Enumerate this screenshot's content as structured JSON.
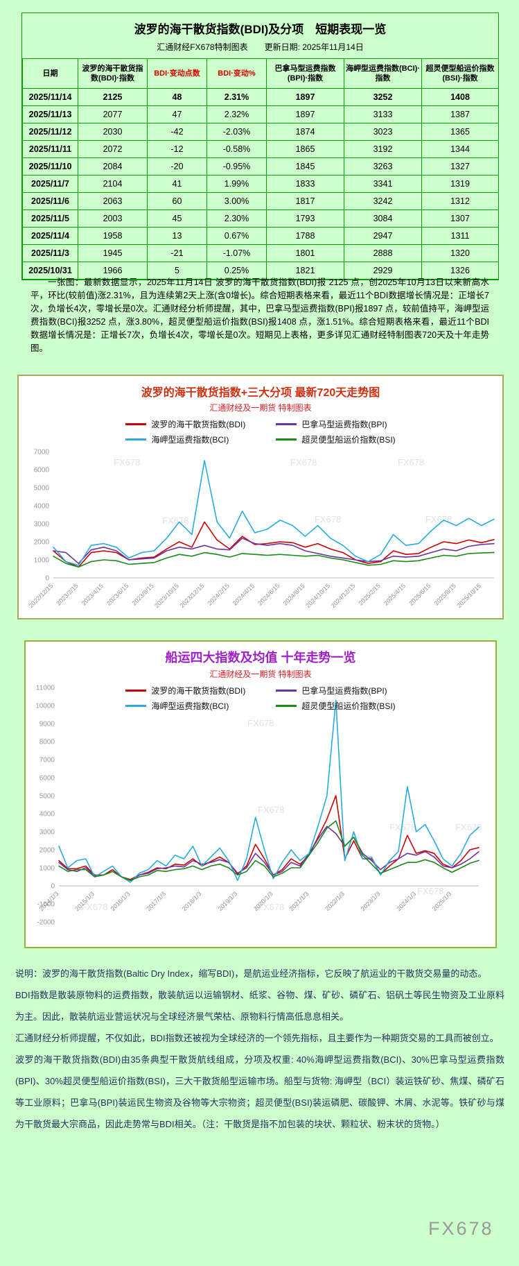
{
  "page": {
    "title": "波罗的海干散货指数(BDI)及分项　短期表现一览",
    "subtitle": "汇通财经FX678特制图表　　更新日期: 2025年11月14日",
    "watermark": "FX678"
  },
  "table": {
    "headers": [
      "日期",
      "波罗的海干散货指数(BDI)·指数",
      "BDI·变动点数",
      "BDI·变动%",
      "巴拿马型运费指数(BPI)·指数",
      "海岬型运费指数(BCI)·指数",
      "超灵便型船运价指数(BSI)·指数"
    ],
    "rows": [
      [
        "2025/11/14",
        "2125",
        "48",
        "2.31%",
        "1897",
        "3252",
        "1408"
      ],
      [
        "2025/11/13",
        "2077",
        "47",
        "2.32%",
        "1897",
        "3133",
        "1387"
      ],
      [
        "2025/11/12",
        "2030",
        "-42",
        "-2.03%",
        "1874",
        "3023",
        "1365"
      ],
      [
        "2025/11/11",
        "2072",
        "-12",
        "-0.58%",
        "1865",
        "3192",
        "1344"
      ],
      [
        "2025/11/10",
        "2084",
        "-20",
        "-0.95%",
        "1845",
        "3263",
        "1327"
      ],
      [
        "2025/11/7",
        "2104",
        "41",
        "1.99%",
        "1833",
        "3341",
        "1319"
      ],
      [
        "2025/11/6",
        "2063",
        "60",
        "3.00%",
        "1817",
        "3242",
        "1312"
      ],
      [
        "2025/11/5",
        "2003",
        "45",
        "2.30%",
        "1793",
        "3084",
        "1307"
      ],
      [
        "2025/11/4",
        "1958",
        "13",
        "0.67%",
        "1788",
        "2947",
        "1311"
      ],
      [
        "2025/11/3",
        "1945",
        "-21",
        "-1.07%",
        "1801",
        "2888",
        "1320"
      ],
      [
        "2025/10/31",
        "1966",
        "5",
        "0.25%",
        "1821",
        "2929",
        "1326"
      ]
    ]
  },
  "summary": "一张图：最新数据显示，2025年11月14日 波罗的海干散货指数(BDI)报 2125 点，创2025年10月13日以来新高水平，环比(较前值)涨2.31%，且为连续第2天上涨(含0增长)。综合短期表格来看，最近11个BDI数据增长情况是：正增长7次，负增长4次，零增长是0次。汇通财经分析师提醒，其中，巴拿马型运费指数(BPI)报1897 点，较前值持平，海岬型运费指数(BCI)报3252 点，涨3.80%，超灵便型船运价指数(BSI)报1408 点，涨1.51%。综合短期表格来看，最近11个BDI数据增长情况是：正增长7次，负增长4次，零增长是0次。短期见上表格，更多详见汇通财经特制图表720天及十年走势图。",
  "chart_data": [
    {
      "type": "line",
      "title": "波罗的海干散货指数+三大分项  最新720天走势图",
      "subtitle": "汇通财经及一期货 特制图表",
      "ylim": [
        0,
        7000
      ],
      "ytick_step": 1000,
      "grid": false,
      "legend_position": "top-2x2",
      "points_per_label": 2,
      "x_labels": [
        "2022/12/15",
        "2023/2/15",
        "2023/4/15",
        "2023/6/15",
        "2023/8/15",
        "2023/10/15",
        "2023/12/15",
        "2024/2/15",
        "2024/4/15",
        "2024/6/15",
        "2024/8/15",
        "2024/10/15",
        "2024/12/15",
        "2025/2/15",
        "2025/4/15",
        "2025/6/15",
        "2025/8/15",
        "2025/10/15"
      ],
      "series": [
        {
          "name": "波罗的海干散货指数(BDI)",
          "color": "#cc0000",
          "values": [
            1500,
            900,
            600,
            1400,
            1500,
            1400,
            1000,
            1100,
            1150,
            1600,
            2000,
            1700,
            3100,
            2100,
            1600,
            2300,
            1850,
            1900,
            2000,
            1950,
            1700,
            1900,
            1600,
            1400,
            1000,
            800,
            900,
            1500,
            1300,
            1350,
            1700,
            2000,
            1900,
            2100,
            1950,
            2125
          ]
        },
        {
          "name": "巴拿马型运费指数(BPI)",
          "color": "#7030a0",
          "values": [
            1500,
            1400,
            800,
            1550,
            1700,
            1500,
            1000,
            1050,
            1100,
            1500,
            1700,
            1600,
            1800,
            1600,
            1550,
            2200,
            1900,
            1800,
            1900,
            1800,
            1500,
            1350,
            1200,
            1100,
            1000,
            900,
            950,
            1200,
            1150,
            1200,
            1400,
            1600,
            1500,
            1750,
            1850,
            1897
          ]
        },
        {
          "name": "海岬型运费指数(BCI)",
          "color": "#29abe2",
          "values": [
            1700,
            900,
            700,
            1800,
            1900,
            1700,
            1100,
            1400,
            1500,
            2200,
            3100,
            2400,
            6500,
            3100,
            2200,
            3700,
            2500,
            2700,
            3200,
            2900,
            2300,
            2900,
            2200,
            1800,
            1200,
            900,
            1300,
            2400,
            1800,
            1900,
            2600,
            3200,
            2900,
            3300,
            2900,
            3252
          ]
        },
        {
          "name": "超灵便型船运价指数(BSI)",
          "color": "#1a8a1a",
          "values": [
            1200,
            800,
            600,
            900,
            1000,
            950,
            750,
            800,
            850,
            1100,
            1300,
            1200,
            1400,
            1300,
            1150,
            1350,
            1300,
            1250,
            1300,
            1250,
            1200,
            1250,
            1100,
            1000,
            850,
            700,
            750,
            950,
            900,
            950,
            1100,
            1250,
            1200,
            1350,
            1380,
            1408
          ]
        }
      ]
    },
    {
      "type": "line",
      "title": "船运四大指数及均值 十年走势一览",
      "subtitle": "汇通财经及一期货 特制图表",
      "ylim": [
        -2000,
        11000
      ],
      "ytick_step": 1000,
      "grid": false,
      "legend_position": "top-2x2",
      "points_per_label": 4,
      "x_labels": [
        "2014/1/3",
        "2015/1/3",
        "2016/1/3",
        "2017/1/3",
        "2018/1/3",
        "2019/1/3",
        "2020/1/3",
        "2021/1/3",
        "2022/1/3",
        "2023/1/3",
        "2024/1/3",
        "2025/1/3"
      ],
      "series": [
        {
          "name": "波罗的海干散货指数(BDI)",
          "color": "#cc0000",
          "values": [
            1400,
            950,
            950,
            1100,
            600,
            600,
            900,
            500,
            350,
            600,
            750,
            1000,
            950,
            1200,
            1150,
            1500,
            1100,
            1350,
            1600,
            1300,
            650,
            1100,
            2300,
            1500,
            600,
            900,
            1500,
            1200,
            1700,
            2700,
            3700,
            5000,
            1500,
            2500,
            1500,
            1500,
            650,
            1100,
            1500,
            2800,
            1800,
            1950,
            1800,
            1200,
            1000,
            1400,
            2000,
            2125
          ]
        },
        {
          "name": "巴拿马型运费指数(BPI)",
          "color": "#7030a0",
          "values": [
            1300,
            900,
            800,
            1000,
            550,
            600,
            800,
            500,
            300,
            600,
            700,
            950,
            1000,
            1100,
            1050,
            1400,
            1200,
            1300,
            1450,
            1300,
            700,
            1000,
            1800,
            1300,
            600,
            800,
            1300,
            1100,
            1800,
            2600,
            3300,
            2900,
            2200,
            2700,
            1800,
            1400,
            900,
            1300,
            1500,
            1800,
            1700,
            1900,
            1600,
            1100,
            1000,
            1200,
            1500,
            1897
          ]
        },
        {
          "name": "海岬型运费指数(BCI)",
          "color": "#29abe2",
          "values": [
            2200,
            1000,
            1400,
            1500,
            500,
            800,
            1100,
            500,
            200,
            700,
            900,
            1400,
            1100,
            1700,
            1500,
            2200,
            1100,
            1600,
            2100,
            1400,
            300,
            1500,
            3800,
            2000,
            400,
            1300,
            2000,
            1400,
            1800,
            3300,
            5000,
            10300,
            1400,
            3000,
            1500,
            1600,
            600,
            1400,
            1900,
            5500,
            3000,
            3400,
            2500,
            1500,
            1100,
            1800,
            2800,
            3252
          ]
        },
        {
          "name": "超灵便型船运价指数(BSI)",
          "color": "#1a8a1a",
          "values": [
            1100,
            800,
            900,
            900,
            500,
            600,
            800,
            500,
            300,
            500,
            600,
            850,
            800,
            900,
            950,
            1100,
            900,
            1100,
            1200,
            1000,
            600,
            800,
            1400,
            1100,
            500,
            700,
            1000,
            1000,
            1700,
            2400,
            3200,
            3600,
            2200,
            2700,
            1700,
            1200,
            700,
            900,
            1100,
            1300,
            1300,
            1450,
            1300,
            1000,
            750,
            1000,
            1250,
            1408
          ]
        }
      ]
    }
  ],
  "footnote": {
    "paragraphs": [
      "说明：波罗的海干散货指数(Baltic Dry Index，缩写BDI)，是航运业经济指标，它反映了航运业的干散货交易量的动态。",
      "BDI指数是散装原物料的运费指数，散装航运以运输钢材、纸浆、谷物、煤、矿砂、磷矿石、铝矾土等民生物资及工业原料为主。因此，散装航运业营运状况与全球经济景气荣枯、原物料行情高低息息相关。",
      "汇通财经分析师提醒，不仅如此，BDI指数还被视为全球经济的一个领先指标，且主要作为一种期货交易的工具而被创立。",
      "波罗的海干散货指数(BDI)由35条典型干散货航线组成，分项及权重: 40%海岬型运费指数(BCI)、30%巴拿马型运费指数(BPI)、30%超灵便型船运价指数(BSI)，三大干散货船型运输市场。船型与货物: 海岬型（BCI）装运铁矿砂、焦煤、磷矿石等工业原料；巴拿马(BPI)装运民生物资及谷物等大宗物资；超灵便型(BSI)装运磷肥、碳酸钾、木屑、水泥等。铁矿砂与煤为干散货最大宗商品，因此走势常与BDI相关。（注：干散货是指不加包装的块状、颗粒状、粉末状的货物。）"
    ]
  }
}
